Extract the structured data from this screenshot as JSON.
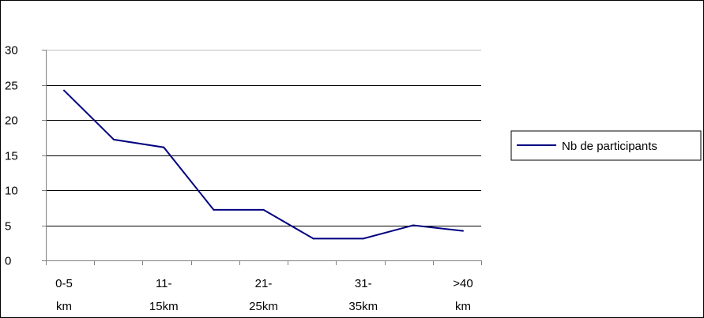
{
  "chart_data": {
    "type": "line",
    "title": "",
    "xlabel": "",
    "ylabel": "",
    "x_tick_labels": [
      [
        "0-5",
        "km"
      ],
      [
        "11-",
        "15km"
      ],
      [
        "21-",
        "25km"
      ],
      [
        "31-",
        "35km"
      ],
      [
        ">40",
        "km"
      ]
    ],
    "x_tick_positions": [
      0,
      2,
      4,
      6,
      8
    ],
    "x_points": [
      0,
      1,
      2,
      3,
      4,
      5,
      6,
      7,
      8
    ],
    "series": [
      {
        "name": "Nb de participants",
        "color": "#000080",
        "values": [
          24.2,
          17.2,
          16.1,
          7.2,
          7.2,
          3.1,
          3.1,
          5.0,
          4.2
        ]
      }
    ],
    "ylim": [
      0,
      30
    ],
    "y_ticks": [
      0,
      5,
      10,
      15,
      20,
      25,
      30
    ],
    "grid": "horizontal",
    "legend_position": "right",
    "colors": {
      "line": "#000080",
      "grid": "#000000",
      "top_grid": "#c0c0c0",
      "axis": "#808080"
    }
  }
}
